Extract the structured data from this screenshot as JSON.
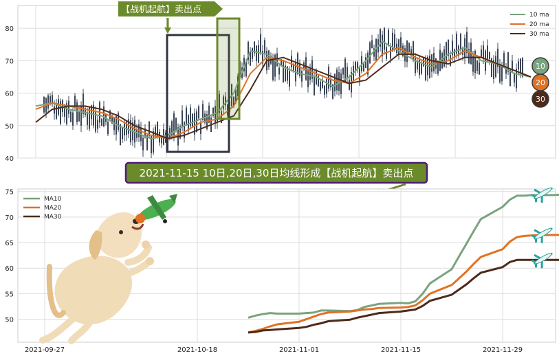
{
  "colors": {
    "ma10": "#7aa37f",
    "ma20": "#e07224",
    "ma30": "#4e2a1a",
    "candle": "#3b4556",
    "banner_bg": "#6b8a2a",
    "banner_border": "#4b1f6e",
    "tag_bg": "#6b8a2a",
    "box_dark": "#2f3440",
    "box_green": "#6b8a2a",
    "plane": "#2aa39a"
  },
  "top_tag": "【战机起航】卖出点",
  "banner": "2021-11-15 10日,20日,30日均线形成【战机起航】卖出点",
  "badges": [
    "10",
    "20",
    "30"
  ],
  "top_legend": [
    "10 ma",
    "20 ma",
    "30 ma"
  ],
  "bottom_legend": [
    "MA10",
    "MA20",
    "MA30"
  ],
  "icons": [
    "plane-icon",
    "dog-illustration",
    "toy-plane-illustration"
  ],
  "chart_data": [
    {
      "type": "line",
      "title": "",
      "ylim": [
        40,
        87
      ],
      "yticks": [
        "40",
        "50",
        "60",
        "70",
        "80"
      ],
      "grid": true,
      "legend": "top-right",
      "candles": "daily candlesticks, close range ~43-86",
      "series": [
        {
          "name": "10 ma",
          "x": [
            0,
            8,
            16,
            24,
            32,
            40,
            48,
            56,
            64,
            72,
            80,
            88,
            96,
            104,
            112,
            120,
            128,
            136,
            144,
            152,
            160,
            168,
            176,
            184,
            192,
            200,
            208,
            216,
            224,
            232,
            240
          ],
          "values": [
            56,
            57,
            55,
            54,
            53,
            50,
            48,
            46,
            47,
            50,
            52,
            54,
            60,
            73,
            72,
            68,
            66,
            65,
            62,
            65,
            70,
            76,
            73,
            70,
            68,
            72,
            74,
            70,
            69,
            66,
            65
          ]
        },
        {
          "name": "20 ma",
          "x": [
            0,
            8,
            16,
            24,
            32,
            40,
            48,
            56,
            64,
            72,
            80,
            88,
            96,
            104,
            112,
            120,
            128,
            136,
            144,
            152,
            160,
            168,
            176,
            184,
            192,
            200,
            208,
            216,
            224,
            232,
            240
          ],
          "values": [
            55,
            57,
            56,
            55,
            54,
            52,
            49,
            47,
            46,
            48,
            51,
            52,
            56,
            66,
            71,
            70,
            68,
            66,
            64,
            63,
            66,
            72,
            74,
            71,
            69,
            70,
            73,
            71,
            69,
            67,
            65
          ]
        },
        {
          "name": "30 ma",
          "x": [
            0,
            8,
            16,
            24,
            32,
            40,
            48,
            56,
            64,
            72,
            80,
            88,
            96,
            104,
            112,
            120,
            128,
            136,
            144,
            152,
            160,
            168,
            176,
            184,
            192,
            200,
            208,
            216,
            224,
            232,
            240
          ],
          "values": [
            51,
            55,
            56,
            56,
            55,
            53,
            50,
            48,
            46,
            47,
            49,
            51,
            53,
            61,
            70,
            71,
            69,
            67,
            65,
            63,
            64,
            68,
            72,
            72,
            70,
            69,
            71,
            71,
            69,
            67,
            65
          ]
        }
      ]
    },
    {
      "type": "line",
      "title": "",
      "xlabel": "",
      "ylabel": "",
      "ylim": [
        45.5,
        75.5
      ],
      "yticks": [
        "50",
        "55",
        "60",
        "65",
        "70",
        "75"
      ],
      "xticks": [
        "2021-09-27",
        "2021-10-18",
        "2021-11-01",
        "2021-11-15",
        "2021-11-29"
      ],
      "grid": true,
      "legend": "top-left",
      "x": [
        "2021-10-25",
        "2021-10-26",
        "2021-10-27",
        "2021-10-28",
        "2021-10-29",
        "2021-11-01",
        "2021-11-02",
        "2021-11-03",
        "2021-11-04",
        "2021-11-05",
        "2021-11-08",
        "2021-11-09",
        "2021-11-10",
        "2021-11-11",
        "2021-11-12",
        "2021-11-15",
        "2021-11-16",
        "2021-11-17",
        "2021-11-18",
        "2021-11-19",
        "2021-11-22",
        "2021-11-23",
        "2021-11-24",
        "2021-11-25",
        "2021-11-26",
        "2021-11-29",
        "2021-11-30",
        "2021-12-01",
        "2021-12-02",
        "2021-12-03",
        "2021-12-06",
        "2021-12-07"
      ],
      "series": [
        {
          "name": "MA10",
          "values": [
            50.3,
            50.7,
            51.0,
            51.2,
            51.1,
            51.1,
            51.2,
            51.3,
            51.7,
            51.7,
            51.6,
            51.8,
            52.4,
            52.7,
            53.0,
            53.2,
            53.1,
            53.5,
            55.0,
            57.0,
            59.8,
            62.3,
            64.7,
            67.2,
            69.6,
            72.0,
            73.4,
            74.2,
            74.2,
            74.3,
            74.3,
            74.4
          ]
        },
        {
          "name": "MA20",
          "values": [
            47.4,
            47.7,
            48.1,
            48.6,
            49.0,
            49.5,
            50.0,
            50.5,
            51.0,
            51.3,
            51.5,
            51.7,
            51.9,
            52.0,
            52.2,
            52.3,
            52.4,
            52.7,
            53.7,
            55.0,
            56.7,
            58.0,
            59.3,
            60.8,
            62.2,
            63.7,
            65.2,
            66.1,
            66.3,
            66.4,
            66.5,
            66.5
          ]
        },
        {
          "name": "MA30",
          "values": [
            47.4,
            47.5,
            47.8,
            47.9,
            48.0,
            48.3,
            48.5,
            48.9,
            49.2,
            49.6,
            49.9,
            50.3,
            50.6,
            50.9,
            51.2,
            51.5,
            51.7,
            51.9,
            52.6,
            53.6,
            54.8,
            55.8,
            56.8,
            58.0,
            59.1,
            60.2,
            61.2,
            61.6,
            61.6,
            61.6,
            61.6,
            61.6
          ]
        }
      ]
    }
  ]
}
